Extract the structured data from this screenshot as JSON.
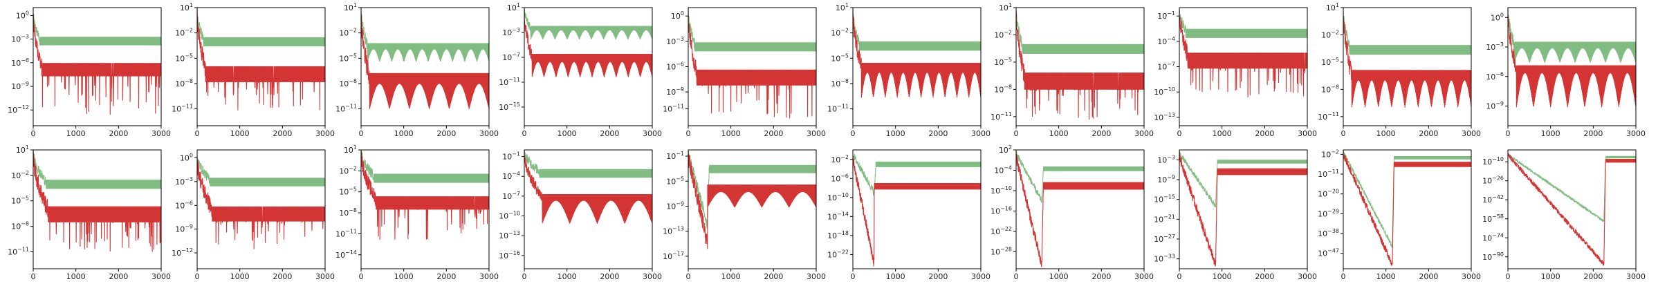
{
  "colors": {
    "series_1": "#7ab97b",
    "series_2": "#d12a2a",
    "axes": "#000000",
    "text": "#222222"
  },
  "chart_data": [
    {
      "type": "line",
      "x": [
        0,
        3000
      ],
      "xticks": [
        0,
        1000,
        2000,
        3000
      ],
      "xlim": [
        0,
        3000
      ],
      "yscale": "log",
      "ylim": [
        1e-14,
        10
      ],
      "yticks_exp": [
        0,
        -3,
        -6,
        -9,
        -12
      ],
      "series": [
        {
          "color": "#7ab97b",
          "start_exp": 0,
          "floor_exp": -3.2,
          "band": 1.0,
          "settle_x": 150,
          "spikes": 0,
          "texture": "dense"
        },
        {
          "color": "#d12a2a",
          "start_exp": -0.5,
          "floor_exp": -6.8,
          "band": 1.6,
          "settle_x": 200,
          "spikes": 40,
          "spike_depth": 5,
          "texture": "dense"
        }
      ]
    },
    {
      "type": "line",
      "x": [
        0,
        3000
      ],
      "xticks": [
        0,
        1000,
        2000,
        3000
      ],
      "xlim": [
        0,
        3000
      ],
      "yscale": "log",
      "ylim": [
        1e-13,
        10
      ],
      "yticks_exp": [
        1,
        -2,
        -5,
        -8,
        -11
      ],
      "series": [
        {
          "color": "#7ab97b",
          "start_exp": 0.5,
          "floor_exp": -3.0,
          "band": 1.0,
          "settle_x": 150,
          "spikes": 0,
          "texture": "dense"
        },
        {
          "color": "#d12a2a",
          "start_exp": 0,
          "floor_exp": -6.8,
          "band": 1.8,
          "settle_x": 200,
          "spikes": 40,
          "spike_depth": 3.5,
          "texture": "dense"
        }
      ]
    },
    {
      "type": "line",
      "x": [
        0,
        3000
      ],
      "xticks": [
        0,
        1000,
        2000,
        3000
      ],
      "xlim": [
        0,
        3000
      ],
      "yscale": "log",
      "ylim": [
        1e-13,
        10
      ],
      "yticks_exp": [
        1,
        -2,
        -5,
        -8,
        -11
      ],
      "series": [
        {
          "color": "#7ab97b",
          "start_exp": 0.5,
          "floor_exp": -3.8,
          "band": 1.1,
          "settle_x": 150,
          "spikes": 0,
          "texture": "arch",
          "arch_count": 10
        },
        {
          "color": "#d12a2a",
          "start_exp": -0.5,
          "floor_exp": -7.8,
          "band": 2.0,
          "settle_x": 200,
          "spikes": 0,
          "texture": "arch",
          "arch_count": 6,
          "arch_depth": 3
        }
      ]
    },
    {
      "type": "line",
      "x": [
        0,
        3000
      ],
      "xticks": [
        0,
        1000,
        2000,
        3000
      ],
      "xlim": [
        0,
        3000
      ],
      "yscale": "log",
      "ylim": [
        1e-18,
        10
      ],
      "yticks_exp": [
        1,
        -3,
        -7,
        -11,
        -15
      ],
      "series": [
        {
          "color": "#7ab97b",
          "start_exp": 0.5,
          "floor_exp": -2.5,
          "band": 1.0,
          "settle_x": 150,
          "spikes": 0,
          "texture": "arch",
          "arch_count": 10
        },
        {
          "color": "#d12a2a",
          "start_exp": -0.5,
          "floor_exp": -7.5,
          "band": 2.0,
          "settle_x": 180,
          "spikes": 0,
          "texture": "arch",
          "arch_count": 10,
          "arch_depth": 2.5
        }
      ]
    },
    {
      "type": "line",
      "x": [
        0,
        3000
      ],
      "xticks": [
        0,
        1000,
        2000,
        3000
      ],
      "xlim": [
        0,
        3000
      ],
      "yscale": "log",
      "ylim": [
        1e-13,
        10
      ],
      "yticks_exp": [
        0,
        -3,
        -6,
        -9,
        -11
      ],
      "series": [
        {
          "color": "#7ab97b",
          "start_exp": 0.5,
          "floor_exp": -3.6,
          "band": 1.0,
          "settle_x": 150,
          "spikes": 0,
          "texture": "dense"
        },
        {
          "color": "#d12a2a",
          "start_exp": 0,
          "floor_exp": -7.2,
          "band": 1.8,
          "settle_x": 200,
          "spikes": 40,
          "spike_depth": 4,
          "texture": "dense"
        }
      ]
    },
    {
      "type": "line",
      "x": [
        0,
        3000
      ],
      "xticks": [
        0,
        1000,
        2000,
        3000
      ],
      "xlim": [
        0,
        3000
      ],
      "yscale": "log",
      "ylim": [
        1e-13,
        10
      ],
      "yticks_exp": [
        1,
        -2,
        -5,
        -8,
        -11
      ],
      "series": [
        {
          "color": "#7ab97b",
          "start_exp": 0.5,
          "floor_exp": -3.5,
          "band": 1.0,
          "settle_x": 150,
          "spikes": 0,
          "texture": "dense"
        },
        {
          "color": "#d12a2a",
          "start_exp": 0,
          "floor_exp": -6.5,
          "band": 1.8,
          "settle_x": 200,
          "spikes": 0,
          "texture": "arch",
          "arch_count": 10,
          "arch_depth": 3
        }
      ]
    },
    {
      "type": "line",
      "x": [
        0,
        3000
      ],
      "xticks": [
        0,
        1000,
        2000,
        3000
      ],
      "xlim": [
        0,
        3000
      ],
      "yscale": "log",
      "ylim": [
        1e-12,
        10
      ],
      "yticks_exp": [
        1,
        -2,
        -5,
        -8,
        -11
      ],
      "series": [
        {
          "color": "#7ab97b",
          "start_exp": 0.5,
          "floor_exp": -3.5,
          "band": 1.0,
          "settle_x": 150,
          "spikes": 0,
          "texture": "dense"
        },
        {
          "color": "#d12a2a",
          "start_exp": 0,
          "floor_exp": -7.0,
          "band": 1.8,
          "settle_x": 200,
          "spikes": 40,
          "spike_depth": 3.5,
          "texture": "dense"
        }
      ]
    },
    {
      "type": "line",
      "x": [
        0,
        3000
      ],
      "xticks": [
        0,
        1000,
        2000,
        3000
      ],
      "xlim": [
        0,
        3000
      ],
      "yscale": "log",
      "ylim": [
        1e-14,
        1
      ],
      "yticks_exp": [
        -1,
        -4,
        -7,
        -10,
        -13
      ],
      "series": [
        {
          "color": "#7ab97b",
          "start_exp": -0.5,
          "floor_exp": -3.0,
          "band": 1.0,
          "settle_x": 150,
          "spikes": 0,
          "texture": "dense"
        },
        {
          "color": "#d12a2a",
          "start_exp": -1,
          "floor_exp": -6.2,
          "band": 1.8,
          "settle_x": 200,
          "spikes": 40,
          "spike_depth": 3.5,
          "texture": "dense"
        }
      ]
    },
    {
      "type": "line",
      "x": [
        0,
        3000
      ],
      "xticks": [
        0,
        1000,
        2000,
        3000
      ],
      "xlim": [
        0,
        3000
      ],
      "yscale": "log",
      "ylim": [
        1e-12,
        10
      ],
      "yticks_exp": [
        1,
        -2,
        -5,
        -8,
        -11
      ],
      "series": [
        {
          "color": "#7ab97b",
          "start_exp": 0.5,
          "floor_exp": -3.6,
          "band": 1.0,
          "settle_x": 150,
          "spikes": 0,
          "texture": "dense"
        },
        {
          "color": "#d12a2a",
          "start_exp": 0,
          "floor_exp": -6.8,
          "band": 1.8,
          "settle_x": 200,
          "spikes": 0,
          "texture": "arch",
          "arch_count": 9,
          "arch_depth": 3
        }
      ]
    },
    {
      "type": "line",
      "x": [
        0,
        3000
      ],
      "xticks": [
        0,
        1000,
        2000,
        3000
      ],
      "xlim": [
        0,
        3000
      ],
      "yscale": "log",
      "ylim": [
        1e-11,
        10
      ],
      "yticks_exp": [
        0,
        -3,
        -6,
        -9
      ],
      "series": [
        {
          "color": "#7ab97b",
          "start_exp": 0.5,
          "floor_exp": -3.0,
          "band": 1.0,
          "settle_x": 150,
          "spikes": 0,
          "texture": "arch",
          "arch_count": 8
        },
        {
          "color": "#d12a2a",
          "start_exp": 0,
          "floor_exp": -5.5,
          "band": 1.2,
          "settle_x": 200,
          "spikes": 0,
          "texture": "arch",
          "arch_count": 7,
          "arch_depth": 3.5
        }
      ]
    },
    {
      "type": "line",
      "x": [
        0,
        3000
      ],
      "xticks": [
        0,
        1000,
        2000,
        3000
      ],
      "xlim": [
        0,
        3000
      ],
      "yscale": "log",
      "ylim": [
        1e-13,
        10
      ],
      "yticks_exp": [
        1,
        -2,
        -5,
        -8,
        -11
      ],
      "series": [
        {
          "color": "#7ab97b",
          "start_exp": 0.5,
          "floor_exp": -3.0,
          "band": 1.0,
          "settle_x": 300,
          "spikes": 0,
          "texture": "dense"
        },
        {
          "color": "#d12a2a",
          "start_exp": 0,
          "floor_exp": -6.5,
          "band": 1.8,
          "settle_x": 350,
          "spikes": 40,
          "spike_depth": 3.5,
          "texture": "dense"
        }
      ]
    },
    {
      "type": "line",
      "x": [
        0,
        3000
      ],
      "xticks": [
        0,
        1000,
        2000,
        3000
      ],
      "xlim": [
        0,
        3000
      ],
      "yscale": "log",
      "ylim": [
        1e-14,
        10
      ],
      "yticks_exp": [
        0,
        -3,
        -6,
        -9,
        -12
      ],
      "series": [
        {
          "color": "#7ab97b",
          "start_exp": 0,
          "floor_exp": -3.0,
          "band": 1.0,
          "settle_x": 300,
          "spikes": 0,
          "texture": "dense"
        },
        {
          "color": "#d12a2a",
          "start_exp": -0.5,
          "floor_exp": -7.0,
          "band": 1.8,
          "settle_x": 350,
          "spikes": 40,
          "spike_depth": 3.5,
          "texture": "dense"
        }
      ]
    },
    {
      "type": "line",
      "x": [
        0,
        3000
      ],
      "xticks": [
        0,
        1000,
        2000,
        3000
      ],
      "xlim": [
        0,
        3000
      ],
      "yscale": "log",
      "ylim": [
        1e-16,
        10
      ],
      "yticks_exp": [
        1,
        -2,
        -5,
        -8,
        -11,
        -14
      ],
      "series": [
        {
          "color": "#7ab97b",
          "start_exp": 0.5,
          "floor_exp": -3.0,
          "band": 1.2,
          "settle_x": 300,
          "spikes": 0,
          "texture": "dense"
        },
        {
          "color": "#d12a2a",
          "start_exp": 0,
          "floor_exp": -6.5,
          "band": 1.8,
          "settle_x": 350,
          "spikes": 40,
          "spike_depth": 4.5,
          "texture": "dense"
        }
      ]
    },
    {
      "type": "line",
      "x": [
        0,
        3000
      ],
      "xticks": [
        0,
        1000,
        2000,
        3000
      ],
      "xlim": [
        0,
        3000
      ],
      "yscale": "log",
      "ylim": [
        1e-18,
        1
      ],
      "yticks_exp": [
        -1,
        -4,
        -7,
        -10,
        -13,
        -16
      ],
      "series": [
        {
          "color": "#7ab97b",
          "start_exp": -0.5,
          "floor_exp": -3.5,
          "band": 1.2,
          "settle_x": 350,
          "spikes": 0,
          "texture": "dense"
        },
        {
          "color": "#d12a2a",
          "start_exp": -1,
          "floor_exp": -7.5,
          "band": 1.5,
          "settle_x": 420,
          "spikes": 0,
          "texture": "arch",
          "arch_count": 4,
          "arch_depth": 3.5
        }
      ]
    },
    {
      "type": "line",
      "x": [
        0,
        3000
      ],
      "xticks": [
        0,
        1000,
        2000,
        3000
      ],
      "xlim": [
        0,
        3000
      ],
      "yscale": "log",
      "ylim": [
        1e-19,
        1
      ],
      "yticks_exp": [
        -1,
        -5,
        -9,
        -13,
        -17
      ],
      "series": [
        {
          "color": "#7ab97b",
          "start_exp": -0.5,
          "floor_exp": -3.0,
          "band": 1.2,
          "settle_x": 300,
          "spikes": 0,
          "texture": "dense",
          "dip_x": 450,
          "dip_exp": -12
        },
        {
          "color": "#d12a2a",
          "start_exp": -1,
          "floor_exp": -6.5,
          "band": 1.8,
          "settle_x": 450,
          "spikes": 0,
          "texture": "arch",
          "arch_count": 4,
          "arch_depth": 2.5,
          "dip_x": 450,
          "dip_exp": -15
        }
      ]
    },
    {
      "type": "line",
      "x": [
        0,
        3000
      ],
      "xticks": [
        0,
        1000,
        2000,
        3000
      ],
      "xlim": [
        0,
        3000
      ],
      "yscale": "log",
      "ylim": [
        1e-25,
        1
      ],
      "yticks_exp": [
        -2,
        -6,
        -10,
        -14,
        -18,
        -22
      ],
      "series": [
        {
          "color": "#7ab97b",
          "start_exp": -1,
          "floor_exp": -3.0,
          "band": 1.0,
          "settle_x": 500,
          "spikes": 0,
          "texture": "dense",
          "dip_x": 500,
          "dip_exp": -9
        },
        {
          "color": "#d12a2a",
          "start_exp": -2,
          "floor_exp": -7.5,
          "band": 1.5,
          "settle_x": 520,
          "spikes": 0,
          "texture": "flat",
          "dip_x": 500,
          "dip_exp": -24
        }
      ]
    },
    {
      "type": "line",
      "x": [
        0,
        3000
      ],
      "xticks": [
        0,
        1000,
        2000,
        3000
      ],
      "xlim": [
        0,
        3000
      ],
      "yscale": "log",
      "ylim": [
        1e-33,
        100
      ],
      "yticks_exp": [
        2,
        -4,
        -10,
        -16,
        -22,
        -28
      ],
      "series": [
        {
          "color": "#7ab97b",
          "start_exp": 1,
          "floor_exp": -3.5,
          "band": 1.2,
          "settle_x": 600,
          "spikes": 0,
          "texture": "dense",
          "dip_x": 600,
          "dip_exp": -13
        },
        {
          "color": "#d12a2a",
          "start_exp": 0,
          "floor_exp": -8.5,
          "band": 2.0,
          "settle_x": 620,
          "spikes": 0,
          "texture": "dense",
          "dip_x": 600,
          "dip_exp": -32
        }
      ]
    },
    {
      "type": "line",
      "x": [
        0,
        3000
      ],
      "xticks": [
        0,
        1000,
        2000,
        3000
      ],
      "xlim": [
        0,
        3000
      ],
      "yscale": "log",
      "ylim": [
        1e-36,
        1
      ],
      "yticks_exp": [
        -3,
        -9,
        -15,
        -21,
        -27,
        -33
      ],
      "series": [
        {
          "color": "#7ab97b",
          "start_exp": -1,
          "floor_exp": -3.5,
          "band": 1.0,
          "settle_x": 850,
          "spikes": 0,
          "texture": "dense",
          "dip_x": 850,
          "dip_exp": -17
        },
        {
          "color": "#d12a2a",
          "start_exp": -2,
          "floor_exp": -6.5,
          "band": 1.8,
          "settle_x": 870,
          "spikes": 0,
          "texture": "dense",
          "dip_x": 850,
          "dip_exp": -35
        }
      ]
    },
    {
      "type": "line",
      "x": [
        0,
        3000
      ],
      "xticks": [
        0,
        1000,
        2000,
        3000
      ],
      "xlim": [
        0,
        3000
      ],
      "yscale": "log",
      "ylim": [
        1e-54,
        1
      ],
      "yticks_exp": [
        -2,
        -11,
        -20,
        -29,
        -38,
        -47
      ],
      "series": [
        {
          "color": "#7ab97b",
          "start_exp": -1,
          "floor_exp": -3.5,
          "band": 1.2,
          "settle_x": 1150,
          "spikes": 0,
          "texture": "dense",
          "dip_x": 1150,
          "dip_exp": -44
        },
        {
          "color": "#d12a2a",
          "start_exp": -2,
          "floor_exp": -6.5,
          "band": 2.0,
          "settle_x": 1170,
          "spikes": 0,
          "texture": "dense",
          "dip_x": 1150,
          "dip_exp": -52
        }
      ]
    },
    {
      "type": "line",
      "x": [
        0,
        3000
      ],
      "xticks": [
        0,
        1000,
        2000,
        3000
      ],
      "xlim": [
        0,
        3000
      ],
      "yscale": "log",
      "ylim": [
        1e-100,
        1
      ],
      "yticks_exp": [
        -10,
        -26,
        -42,
        -58,
        -74,
        -90
      ],
      "series": [
        {
          "color": "#7ab97b",
          "start_exp": -4,
          "floor_exp": -6,
          "band": 1.5,
          "settle_x": 2250,
          "spikes": 0,
          "texture": "dense",
          "dip_x": 2250,
          "dip_exp": -60
        },
        {
          "color": "#d12a2a",
          "start_exp": -4,
          "floor_exp": -9,
          "band": 2.5,
          "settle_x": 2260,
          "spikes": 0,
          "texture": "dense",
          "dip_x": 2250,
          "dip_exp": -96
        }
      ]
    }
  ]
}
